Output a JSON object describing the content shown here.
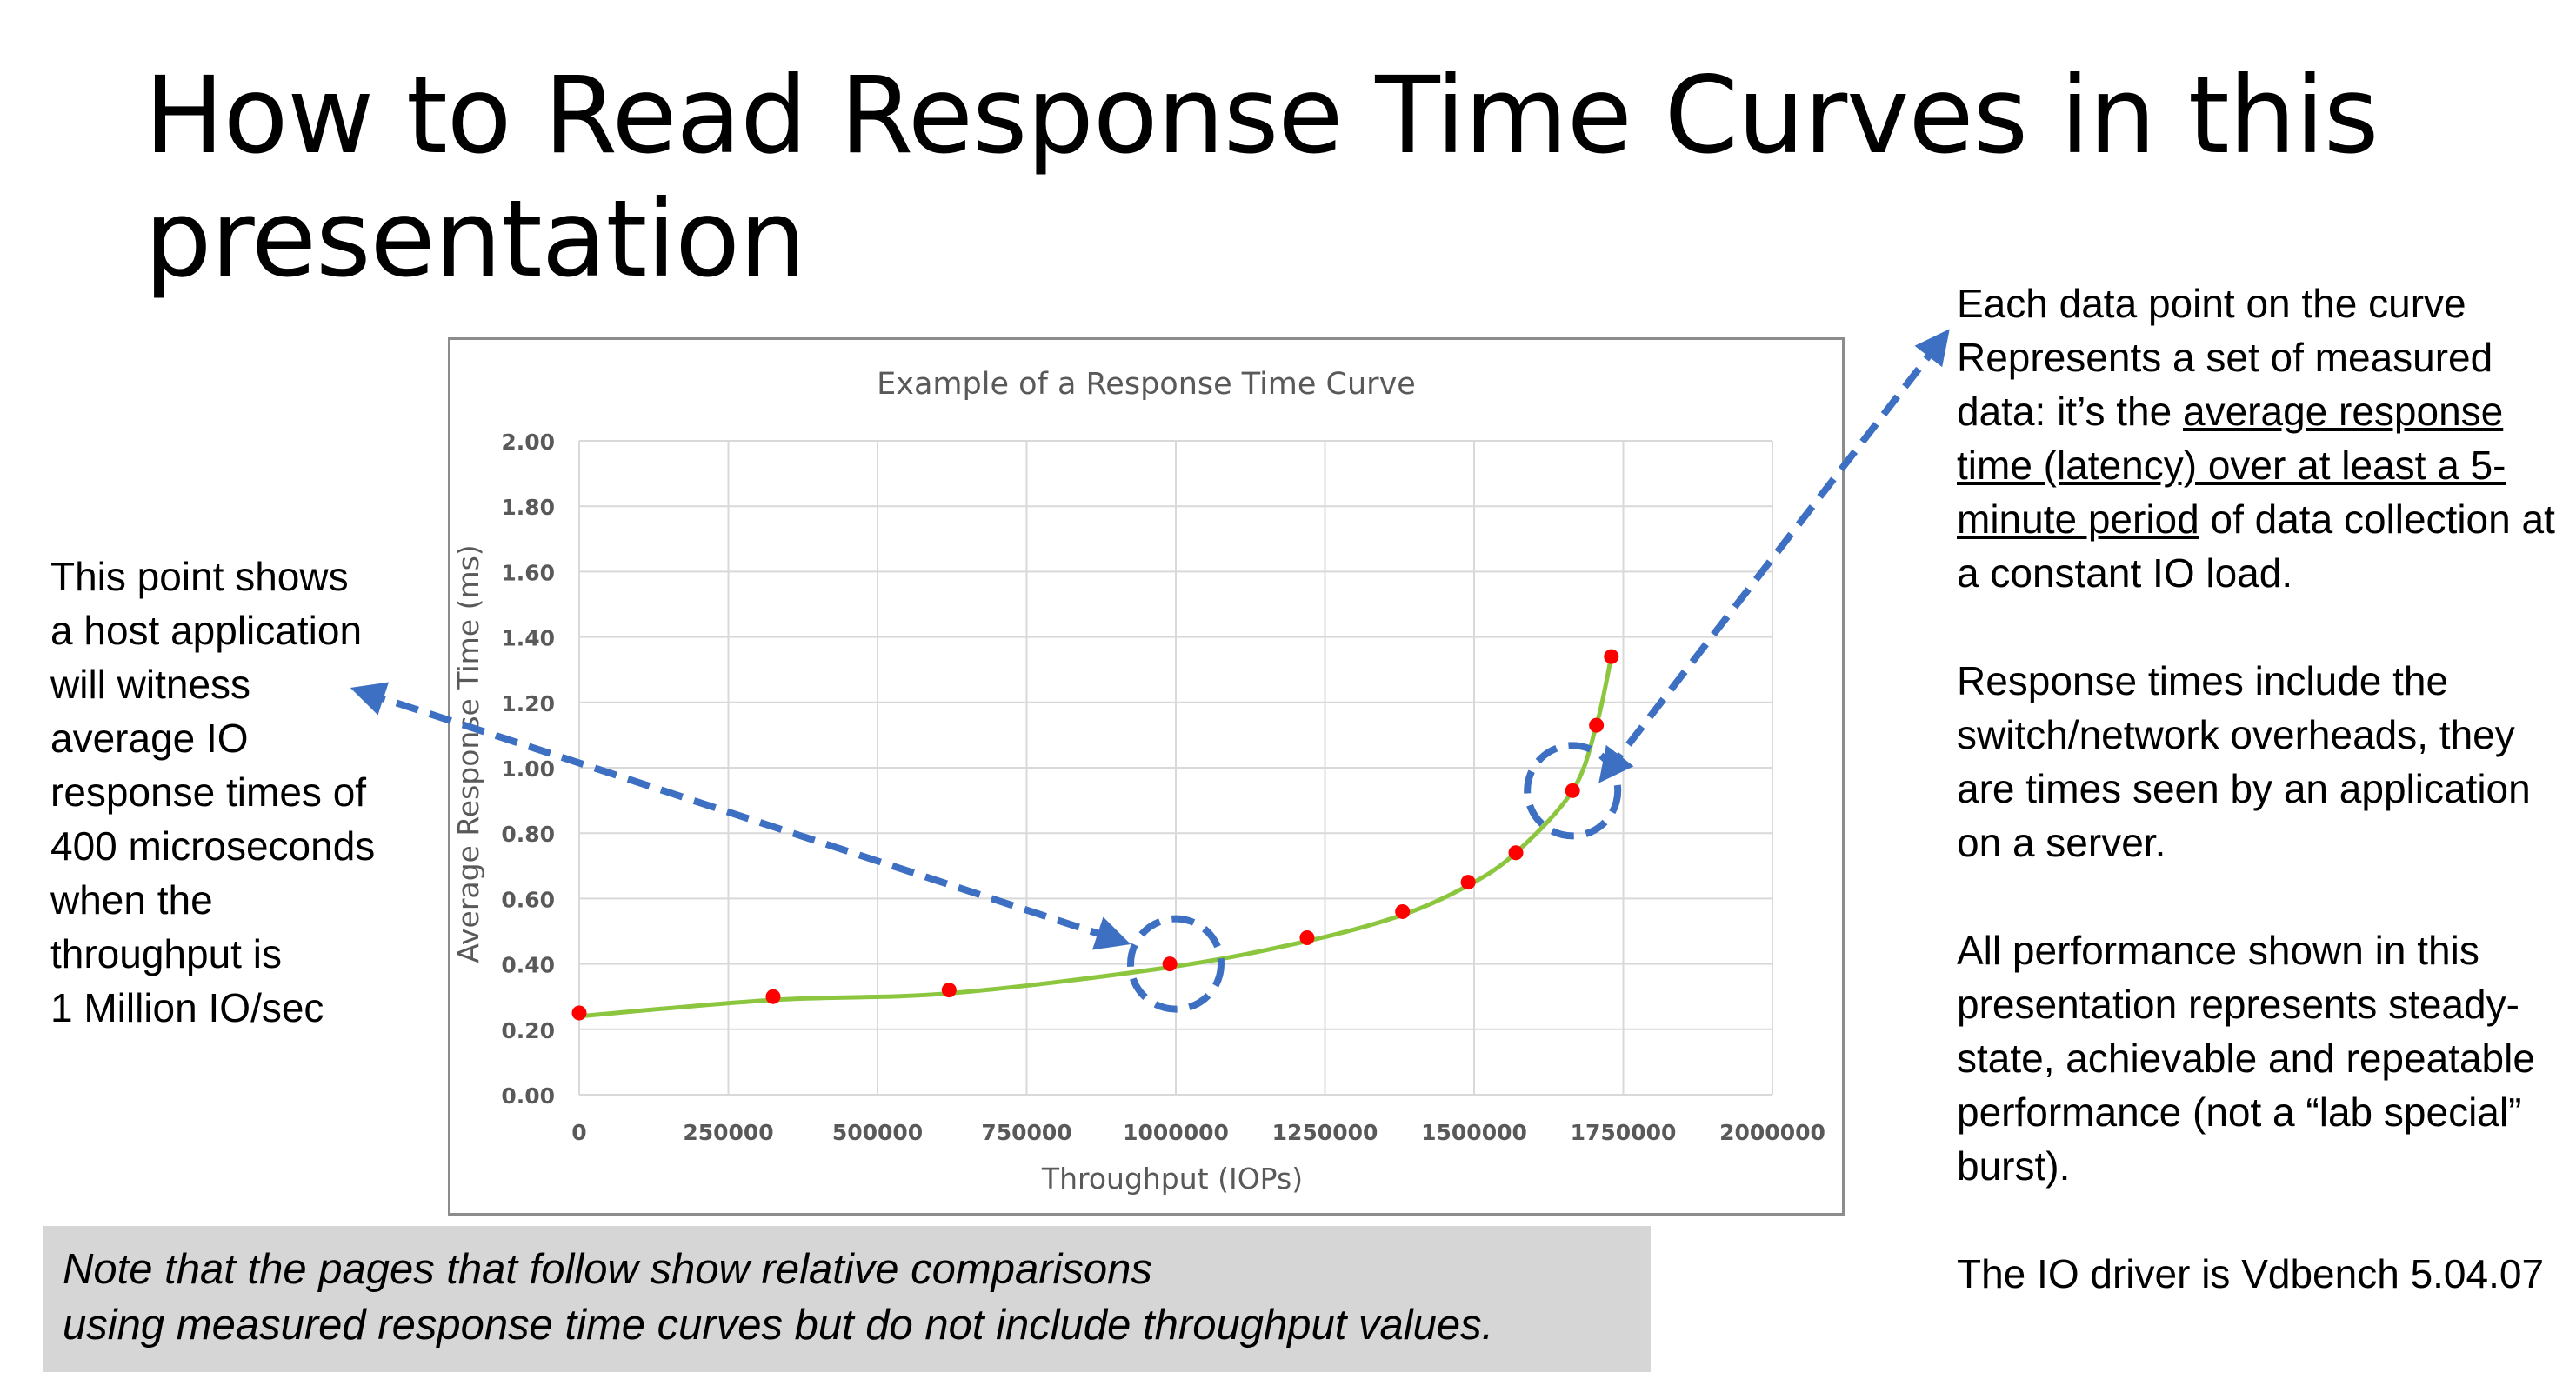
{
  "slide": {
    "title": "How to Read Response Time Curves in this presentation",
    "left_note": [
      "This point shows",
      "a host application",
      "will witness",
      "average IO",
      "response times of",
      "400 microseconds",
      "when the",
      "throughput is",
      "1 Million IO/sec"
    ],
    "right_notes": {
      "p1_pre": "Each data point on the curve Represents a set of measured data: it’s the ",
      "p1_underlined": "average response time (latency) over at least a 5-minute period",
      "p1_post": " of data collection at a constant IO load.",
      "p2": "Response times include the switch/network overheads, they are times seen by an application on a server.",
      "p3": "All performance shown in this presentation represents steady-state, achievable and repeatable performance (not a “lab special” burst).",
      "p4": "The IO driver is Vdbench 5.04.07"
    },
    "footnote": [
      "Note that the pages that follow show relative comparisons",
      "using measured response time curves but do not include throughput values."
    ],
    "colors": {
      "arrow": "#3d6fc2",
      "curve": "#8cc63f",
      "points": "#ff0000",
      "grid": "#d9d9d9"
    }
  },
  "chart_data": {
    "type": "scatter",
    "title": "Example of a Response Time Curve",
    "xlabel": "Throughput (IOPs)",
    "ylabel": "Average Response Time (ms)",
    "xlim": [
      0,
      2000000
    ],
    "ylim": [
      0,
      2.0
    ],
    "x_ticks": [
      "0",
      "250000",
      "500000",
      "750000",
      "1000000",
      "1250000",
      "1500000",
      "1750000",
      "2000000"
    ],
    "y_ticks": [
      "0.00",
      "0.20",
      "0.40",
      "0.60",
      "0.80",
      "1.00",
      "1.20",
      "1.40",
      "1.60",
      "1.80",
      "2.00"
    ],
    "grid": true,
    "legend": "none",
    "points": {
      "x": [
        0,
        325000,
        620000,
        990000,
        1220000,
        1380000,
        1490000,
        1570000,
        1665000,
        1705000,
        1730000
      ],
      "y": [
        0.25,
        0.3,
        0.32,
        0.4,
        0.48,
        0.56,
        0.65,
        0.74,
        0.93,
        1.13,
        1.34
      ]
    },
    "trend": {
      "x": [
        0,
        325000,
        620000,
        990000,
        1220000,
        1380000,
        1490000,
        1570000,
        1665000,
        1705000,
        1730000
      ],
      "y": [
        0.24,
        0.29,
        0.31,
        0.39,
        0.47,
        0.55,
        0.64,
        0.74,
        0.93,
        1.13,
        1.34
      ]
    },
    "highlight_points": [
      {
        "x": 1000000,
        "y": 0.4
      },
      {
        "x": 1665000,
        "y": 0.93
      }
    ]
  }
}
